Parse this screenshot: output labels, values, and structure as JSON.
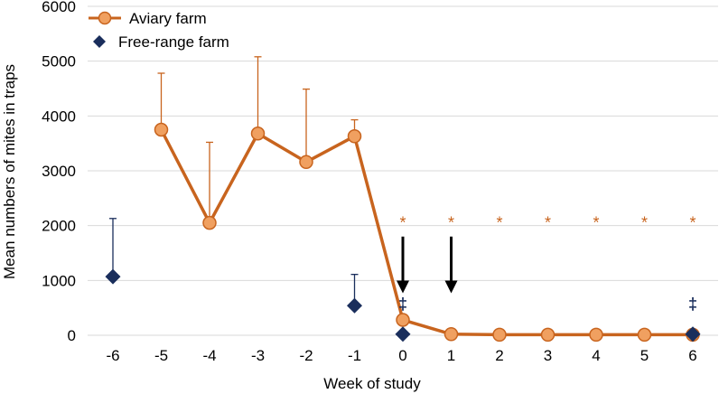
{
  "chart_data": {
    "type": "line",
    "title": "",
    "xlabel": "Week of study",
    "ylabel": "Mean numbers of mites in traps",
    "ylim": [
      0,
      6000
    ],
    "yticks": [
      "0",
      "1000",
      "2000",
      "3000",
      "4000",
      "5000",
      "6000"
    ],
    "categories": [
      "-6",
      "-5",
      "-4",
      "-3",
      "-2",
      "-1",
      "0",
      "1",
      "2",
      "3",
      "4",
      "5",
      "6"
    ],
    "grid": "horizontal",
    "legend_position": "top-left",
    "series": [
      {
        "name": "Aviary farm",
        "style": "line-circle",
        "color": "#c8641e",
        "fill": "#f0a060",
        "points": [
          {
            "x": "-5",
            "y": 3750,
            "err": 4780
          },
          {
            "x": "-4",
            "y": 2050,
            "err": 3520
          },
          {
            "x": "-3",
            "y": 3680,
            "err": 5080
          },
          {
            "x": "-2",
            "y": 3160,
            "err": 4490
          },
          {
            "x": "-1",
            "y": 3630,
            "err": 3930
          },
          {
            "x": "0",
            "y": 280
          },
          {
            "x": "1",
            "y": 20
          },
          {
            "x": "2",
            "y": 10
          },
          {
            "x": "3",
            "y": 10
          },
          {
            "x": "4",
            "y": 10
          },
          {
            "x": "5",
            "y": 10
          },
          {
            "x": "6",
            "y": 10
          }
        ]
      },
      {
        "name": "Free-range farm",
        "style": "diamond",
        "color": "#1a2e5c",
        "points": [
          {
            "x": "-6",
            "y": 1070,
            "err": 2130
          },
          {
            "x": "-1",
            "y": 540,
            "err": 1110
          },
          {
            "x": "0",
            "y": 20
          },
          {
            "x": "6",
            "y": 20
          }
        ]
      }
    ],
    "annotations": {
      "stars": {
        "text": "*",
        "color": "#c8641e",
        "weeks": [
          "0",
          "1",
          "2",
          "3",
          "4",
          "5",
          "6"
        ],
        "y": 2150
      },
      "arrows": {
        "weeks": [
          "0",
          "1"
        ],
        "y_from": 1800,
        "y_to": 800
      },
      "daggers": {
        "text": "‡",
        "color": "#1a2e5c",
        "weeks": [
          "0",
          "6"
        ],
        "y": 700
      }
    }
  }
}
